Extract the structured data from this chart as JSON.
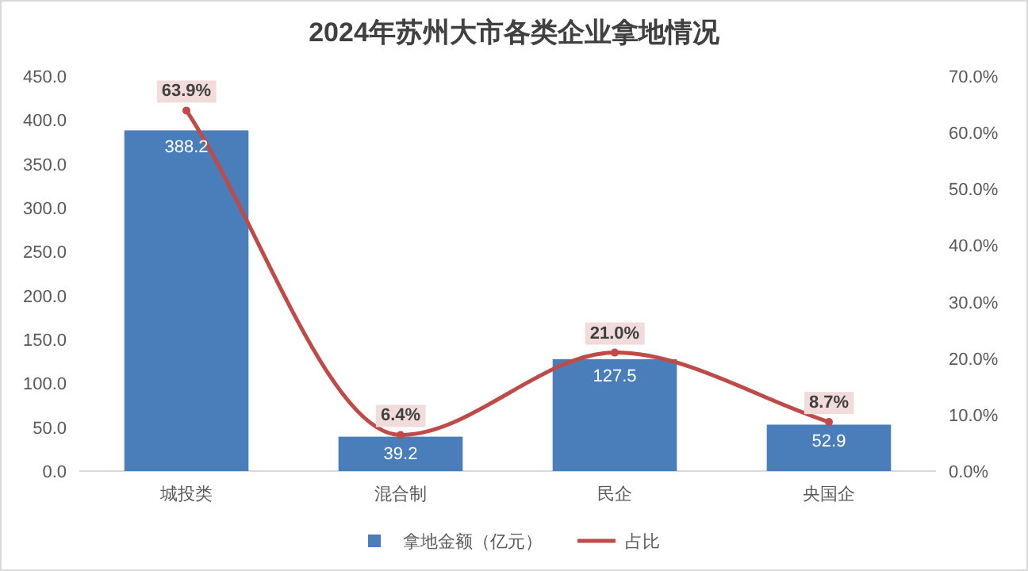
{
  "chart_data": {
    "type": "bar",
    "title": "2024年苏州大市各类企业拿地情况",
    "categories": [
      "城投类",
      "混合制",
      "民企",
      "央国企"
    ],
    "series": [
      {
        "name": "拿地金额（亿元）",
        "color": "#4a7ebb",
        "values": [
          388.2,
          39.2,
          127.5,
          52.9
        ],
        "value_labels": [
          "388.2",
          "39.2",
          "127.5",
          "52.9"
        ]
      },
      {
        "name": "占比",
        "type": "line",
        "axis": "y2",
        "marker": "circle",
        "color": "#be4b48",
        "values": [
          63.9,
          6.4,
          21.0,
          8.7
        ],
        "value_labels": [
          "63.9%",
          "6.4%",
          "21.0%",
          "8.7%"
        ]
      }
    ],
    "ylim": [
      0,
      450
    ],
    "yticks": [
      {
        "value": 0,
        "label": "0.0"
      },
      {
        "value": 50,
        "label": "50.0"
      },
      {
        "value": 100,
        "label": "100.0"
      },
      {
        "value": 150,
        "label": "150.0"
      },
      {
        "value": 200,
        "label": "200.0"
      },
      {
        "value": 250,
        "label": "250.0"
      },
      {
        "value": 300,
        "label": "300.0"
      },
      {
        "value": 350,
        "label": "350.0"
      },
      {
        "value": 400,
        "label": "400.0"
      },
      {
        "value": 450,
        "label": "450.0"
      }
    ],
    "y2lim": [
      0,
      70
    ],
    "y2ticks": [
      {
        "value": 0,
        "label": "0.0%"
      },
      {
        "value": 10,
        "label": "10.0%"
      },
      {
        "value": 20,
        "label": "20.0%"
      },
      {
        "value": 30,
        "label": "30.0%"
      },
      {
        "value": 40,
        "label": "40.0%"
      },
      {
        "value": 50,
        "label": "50.0%"
      },
      {
        "value": 60,
        "label": "60.0%"
      },
      {
        "value": 70,
        "label": "70.0%"
      }
    ],
    "legend": "bottom"
  }
}
